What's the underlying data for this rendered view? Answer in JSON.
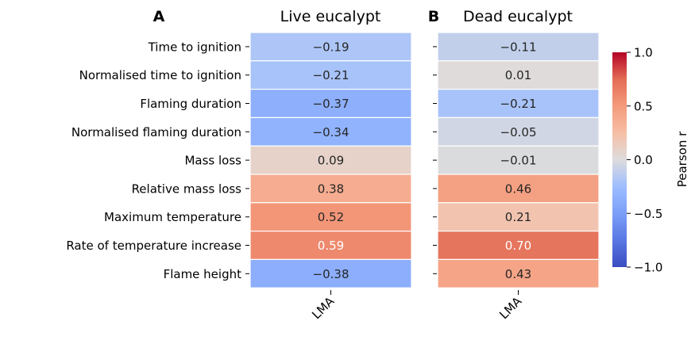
{
  "chart_data": [
    {
      "type": "heatmap",
      "panel_label": "A",
      "title": "Live eucalypt",
      "rows": [
        "Time to ignition",
        "Normalised time to ignition",
        "Flaming duration",
        "Normalised flaming duration",
        "Mass loss",
        "Relative mass loss",
        "Maximum temperature",
        "Rate of temperature increase",
        "Flame height"
      ],
      "columns": [
        "LMA"
      ],
      "values": [
        -0.19,
        -0.21,
        -0.37,
        -0.34,
        0.09,
        0.38,
        0.52,
        0.59,
        -0.38
      ],
      "value_labels": [
        "−0.19",
        "−0.21",
        "−0.37",
        "−0.34",
        "0.09",
        "0.38",
        "0.52",
        "0.59",
        "−0.38"
      ]
    },
    {
      "type": "heatmap",
      "panel_label": "B",
      "title": "Dead eucalypt",
      "rows": [
        "Time to ignition",
        "Normalised time to ignition",
        "Flaming duration",
        "Normalised flaming duration",
        "Mass loss",
        "Relative mass loss",
        "Maximum temperature",
        "Rate of temperature increase",
        "Flame height"
      ],
      "columns": [
        "LMA"
      ],
      "values": [
        -0.11,
        0.01,
        -0.21,
        -0.05,
        -0.01,
        0.46,
        0.21,
        0.7,
        0.43
      ],
      "value_labels": [
        "−0.11",
        "0.01",
        "−0.21",
        "−0.05",
        "−0.01",
        "0.46",
        "0.21",
        "0.70",
        "0.43"
      ]
    }
  ],
  "colorbar": {
    "label": "Pearson r",
    "range": [
      -1.0,
      1.0
    ],
    "colormap": "coolwarm",
    "ticks": [
      1.0,
      0.5,
      0.0,
      -0.5,
      -1.0
    ],
    "tick_labels": [
      "1.0",
      "0.5",
      "0.0",
      "−0.5",
      "−1.0"
    ]
  }
}
